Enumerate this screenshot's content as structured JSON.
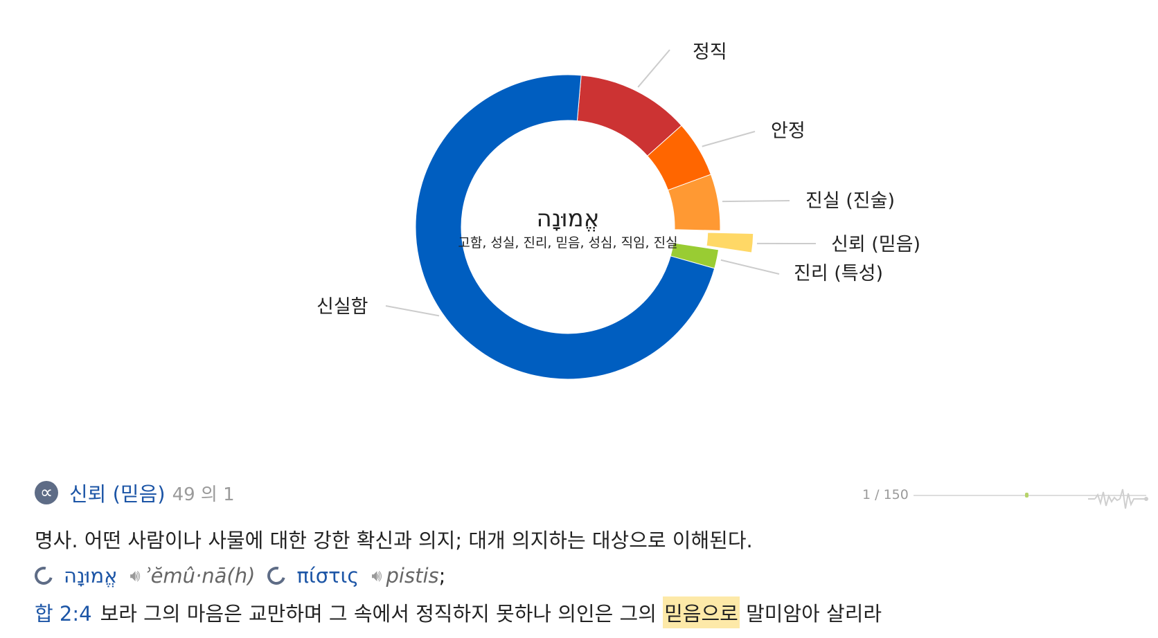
{
  "chart_data": {
    "type": "pie",
    "variant": "donut",
    "center_title": "אֱמוּנָה",
    "center_subtitle": "고함, 성실, 진리, 믿음, 성심, 직임, 진실",
    "slices": [
      {
        "label": "정직",
        "value": 12,
        "color": "#cc3333"
      },
      {
        "label": "안정",
        "value": 6,
        "color": "#ff6600"
      },
      {
        "label": "진실 (진술)",
        "value": 6,
        "color": "#ff9933"
      },
      {
        "label": "신뢰 (믿음)",
        "value": 2,
        "color": "#ffd866",
        "exploded": true
      },
      {
        "label": "진리 (특성)",
        "value": 2,
        "color": "#99cc33"
      },
      {
        "label": "신실함",
        "value": 72,
        "color": "#005ec0"
      }
    ]
  },
  "sense": {
    "icon": "sense-icon",
    "label": "신뢰 (믿음)",
    "count_text": "49 의 1"
  },
  "pager": {
    "text": "1 / 150",
    "position_fraction": 0.01
  },
  "definition": "명사. 어떤 사람이나 사물에 대한 강한 확신과 의지; 대개 의지하는 대상으로 이해된다.",
  "words": [
    {
      "lemma": "אֱמוּנָה",
      "translit": "ʾĕmû·nā(h)"
    },
    {
      "lemma": "πίστις",
      "translit": "pistis"
    }
  ],
  "words_end": ";",
  "verse": {
    "ref": "합 2:4",
    "before": "보라 그의 마음은 교만하며 그 속에서 정직하지 못하나 의인은 그의",
    "highlight": "믿음으로",
    "after": "말미암아 살리라"
  },
  "colors": {
    "accent": "#1c55a6",
    "muted": "#9a9a9a",
    "highlight": "#fde9a8",
    "icon": "#5e6c86"
  }
}
